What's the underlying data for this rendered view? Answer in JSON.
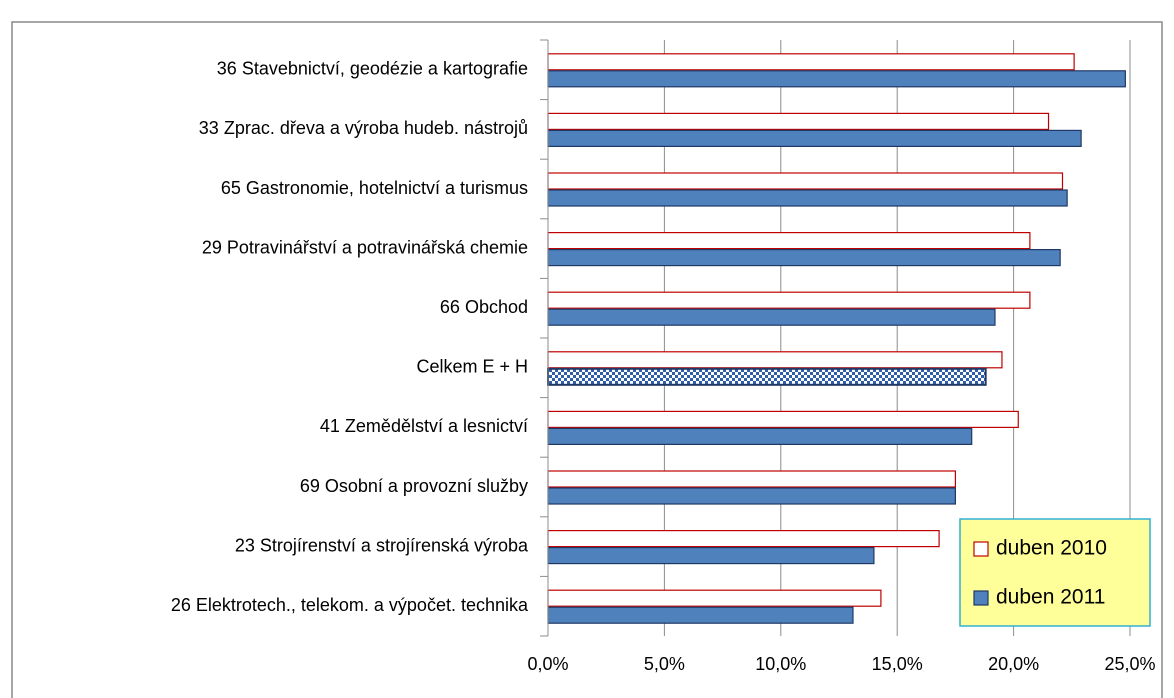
{
  "chart_data": {
    "type": "hbar",
    "categories": [
      "36 Stavebnictví, geodézie a kartografie",
      "33 Zprac. dřeva a výroba hudeb. nástrojů",
      "65 Gastronomie, hotelnictví a turismus",
      "29 Potravinářství a potravinářská chemie",
      "66 Obchod",
      "Celkem E + H",
      "41 Zemědělství a lesnictví",
      "69 Osobní a provozní služby",
      "23 Strojírenství a strojírenská výroba",
      "26 Elektrotech., telekom. a výpočet. technika"
    ],
    "series": [
      {
        "name": "duben 2010",
        "color": "#ffffff",
        "edge": "#c00000",
        "values": [
          22.6,
          21.5,
          22.1,
          20.7,
          20.7,
          19.5,
          20.2,
          17.5,
          16.8,
          14.3
        ]
      },
      {
        "name": "duben 2011",
        "color": "#4f81bd",
        "edge": "#1f3864",
        "values": [
          24.8,
          22.9,
          22.3,
          22.0,
          19.2,
          18.8,
          18.2,
          17.5,
          14.0,
          13.1
        ],
        "pattern_points": [
          5
        ]
      }
    ],
    "xlim": [
      0,
      25
    ],
    "xticks": [
      {
        "value": 0,
        "label": "0,0%"
      },
      {
        "value": 5,
        "label": "5,0%"
      },
      {
        "value": 10,
        "label": "10,0%"
      },
      {
        "value": 15,
        "label": "15,0%"
      },
      {
        "value": 20,
        "label": "20,0%"
      },
      {
        "value": 25,
        "label": "25,0%"
      }
    ],
    "grid": true,
    "legend": "lower right",
    "legend_color": "#ffff99"
  }
}
